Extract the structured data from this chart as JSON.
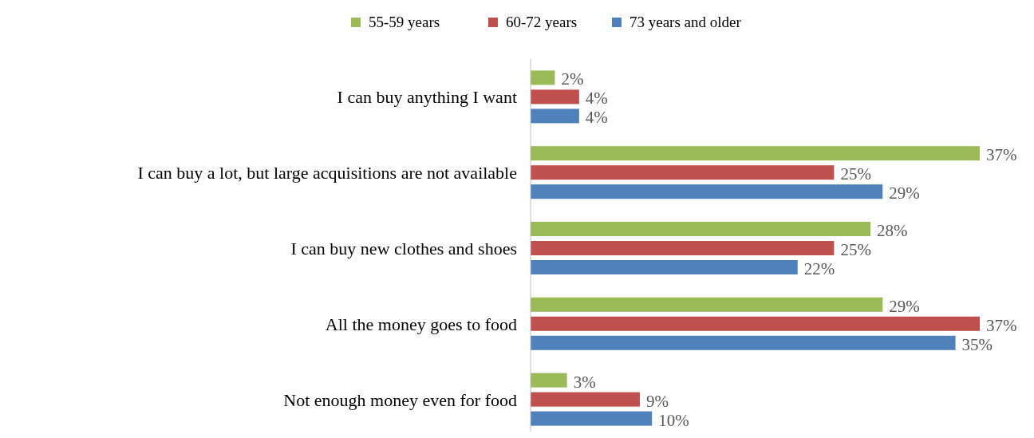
{
  "chart_data": {
    "type": "bar",
    "orientation": "horizontal",
    "categories": [
      "I can buy anything I want",
      "I can buy a lot, but large acquisitions are not available",
      "I can buy new clothes and shoes",
      "All the money goes to food",
      "Not enough money even for food"
    ],
    "series": [
      {
        "name": "55-59 years",
        "color": "#9bbb59",
        "values": [
          2,
          37,
          28,
          29,
          3
        ],
        "value_labels": [
          "2%",
          "37%",
          "28%",
          "29%",
          "3%"
        ]
      },
      {
        "name": "60-72 years",
        "color": "#c0504d",
        "values": [
          4,
          25,
          25,
          37,
          9
        ],
        "value_labels": [
          "4%",
          "25%",
          "25%",
          "37%",
          "9%"
        ]
      },
      {
        "name": "73 years and older",
        "color": "#4f81bd",
        "values": [
          4,
          29,
          22,
          35,
          10
        ],
        "value_labels": [
          "4%",
          "29%",
          "22%",
          "35%",
          "10%"
        ]
      }
    ],
    "legend": "top"
  }
}
